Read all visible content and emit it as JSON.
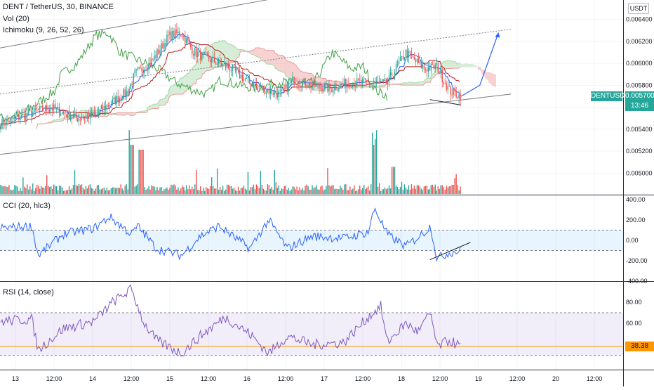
{
  "legend": {
    "main": "DENT / TetherUS, 30, BINANCE",
    "vol": "Vol (20)",
    "ichimoku": "Ichimoku (9, 26, 52, 26)",
    "cci": "CCI (20, hlc3)",
    "rsi": "RSI (14, close)"
  },
  "price_axis": {
    "unit": "USDT",
    "symbol_tag": "DENTUSDT",
    "last_price": "0.005700",
    "countdown": "13:46",
    "ticks": [
      "0.006400",
      "0.006200",
      "0.006000",
      "0.005800",
      "0.005600",
      "0.005400",
      "0.005200",
      "0.005000"
    ]
  },
  "cci_axis": {
    "ticks": [
      "400.00",
      "200.00",
      "0.00",
      "-200.00",
      "-400.00"
    ]
  },
  "rsi_axis": {
    "ticks": [
      "80.00",
      "60.00",
      "40.00"
    ],
    "value_tag": "38.38"
  },
  "time_axis": [
    "13",
    "12:00",
    "14",
    "12:00",
    "15",
    "12:00",
    "16",
    "12:00",
    "17",
    "12:00",
    "18",
    "12:00",
    "19",
    "12:00",
    "20",
    "12:00"
  ],
  "colors": {
    "up": "#26a69a",
    "down": "#ef5350",
    "vol_up": "#26a69a",
    "vol_down": "#ef5350",
    "tenkan": "#2962ff",
    "kijun": "#b71c1c",
    "chikou": "#43a047",
    "cloud_up": "#a5d6a7",
    "cloud_down": "#ef9a9a",
    "cci": "#2962ff",
    "rsi": "#7e57c2",
    "projection": "#2962ff",
    "price_tag": "#26a69a",
    "rsi_tag": "#ff9800",
    "trend": "#787b86",
    "divergence": "#131722"
  },
  "chart_data": [
    {
      "type": "candlestick",
      "title": "DENT / TetherUS, 30, BINANCE",
      "ylim": [
        0.0049,
        0.0065
      ],
      "anchors_t": [
        0,
        0.05,
        0.08,
        0.12,
        0.15,
        0.18,
        0.205,
        0.215,
        0.24,
        0.27,
        0.29,
        0.31,
        0.35,
        0.37,
        0.4,
        0.43,
        0.45,
        0.47,
        0.5,
        0.53,
        0.56,
        0.59,
        0.62,
        0.65,
        0.68,
        0.7,
        0.72,
        0.74
      ],
      "anchors_close": [
        0.00545,
        0.00555,
        0.0056,
        0.0055,
        0.00553,
        0.00565,
        0.00575,
        0.0059,
        0.006,
        0.00625,
        0.00628,
        0.0061,
        0.006,
        0.00595,
        0.00582,
        0.00575,
        0.00572,
        0.00585,
        0.0058,
        0.00577,
        0.00583,
        0.00582,
        0.00582,
        0.0061,
        0.00595,
        0.00597,
        0.00575,
        0.0057
      ],
      "last": 0.0057
    },
    {
      "type": "line",
      "name": "Projection",
      "x_frac": [
        0.74,
        0.77,
        0.8
      ],
      "y": [
        0.0057,
        0.0058,
        0.00628
      ]
    },
    {
      "type": "bar",
      "title": "Vol (20)",
      "spikes_t": [
        0.21,
        0.225,
        0.6,
        0.63
      ],
      "spikes_rel": [
        1.0,
        0.9,
        1.0,
        0.55
      ]
    },
    {
      "type": "line",
      "title": "CCI (20, hlc3)",
      "ylim": [
        -400,
        400
      ],
      "bands": [
        100,
        -100
      ],
      "anchors_t": [
        0,
        0.05,
        0.06,
        0.1,
        0.15,
        0.175,
        0.21,
        0.22,
        0.25,
        0.29,
        0.32,
        0.35,
        0.4,
        0.43,
        0.46,
        0.5,
        0.55,
        0.59,
        0.6,
        0.62,
        0.65,
        0.68,
        0.69,
        0.7,
        0.72,
        0.74
      ],
      "anchors_v": [
        120,
        140,
        -150,
        60,
        120,
        230,
        60,
        140,
        -80,
        -150,
        40,
        140,
        -80,
        200,
        -80,
        40,
        20,
        80,
        320,
        60,
        -60,
        80,
        140,
        -180,
        -120,
        -100
      ]
    },
    {
      "type": "line",
      "title": "RSI (14, close)",
      "ylim": [
        20,
        95
      ],
      "bands": [
        70,
        30
      ],
      "last": 38.38,
      "anchors_t": [
        0,
        0.05,
        0.06,
        0.1,
        0.15,
        0.18,
        0.21,
        0.23,
        0.25,
        0.29,
        0.32,
        0.36,
        0.4,
        0.43,
        0.46,
        0.5,
        0.55,
        0.59,
        0.61,
        0.62,
        0.65,
        0.67,
        0.69,
        0.7,
        0.72,
        0.74
      ],
      "anchors_v": [
        62,
        64,
        35,
        55,
        62,
        80,
        92,
        60,
        44,
        32,
        48,
        66,
        50,
        32,
        48,
        40,
        42,
        66,
        76,
        42,
        60,
        52,
        70,
        38,
        44,
        38
      ]
    }
  ]
}
